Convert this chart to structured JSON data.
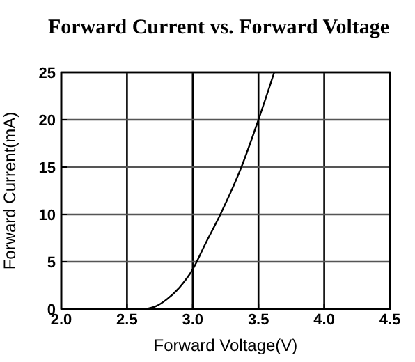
{
  "chart_data": {
    "type": "line",
    "title": "Forward Current vs. Forward Voltage",
    "xlabel": "Forward Voltage(V)",
    "ylabel": "Forward Current(mA)",
    "x": [
      2.64,
      2.72,
      2.8,
      2.9,
      3.0,
      3.1,
      3.21,
      3.37,
      3.5,
      3.62
    ],
    "series": [
      {
        "color": "#000000",
        "values": [
          0,
          0.3,
          1,
          2.3,
          4.2,
          7,
          10,
          15,
          20,
          25
        ]
      }
    ],
    "xlim": [
      2.0,
      4.5
    ],
    "xticks": [
      {
        "value": 2,
        "label": "2.0"
      },
      {
        "value": 2.5,
        "label": "2.5"
      },
      {
        "value": 3,
        "label": "3.0"
      },
      {
        "value": 3.5,
        "label": "3.5"
      },
      {
        "value": 4,
        "label": "4.0"
      },
      {
        "value": 4.5,
        "label": "4.5"
      }
    ],
    "ylim": [
      0,
      25
    ],
    "yticks": [
      0,
      5,
      10,
      15,
      20,
      25
    ],
    "grid": true,
    "marker": "none",
    "line_style": "solid"
  }
}
